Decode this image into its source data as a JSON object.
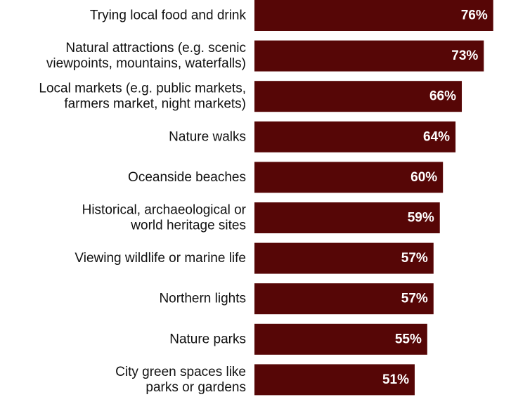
{
  "chart_data": {
    "type": "bar",
    "orientation": "horizontal",
    "title": "",
    "xlabel": "",
    "ylabel": "",
    "value_suffix": "%",
    "xlim": [
      0,
      100
    ],
    "grid": false,
    "legend": "none",
    "bar_color": "#560606",
    "categories": [
      [
        "Trying local food and drink"
      ],
      [
        "Natural attractions (e.g. scenic",
        "viewpoints, mountains, waterfalls)"
      ],
      [
        "Local markets (e.g. public markets,",
        "farmers market, night markets)"
      ],
      [
        "Nature walks"
      ],
      [
        "Oceanside beaches"
      ],
      [
        "Historical, archaeological or",
        "world heritage sites"
      ],
      [
        "Viewing wildlife or marine life"
      ],
      [
        "Northern lights"
      ],
      [
        "Nature parks"
      ],
      [
        "City green spaces like",
        "parks or gardens"
      ]
    ],
    "values": [
      76,
      73,
      66,
      64,
      60,
      59,
      57,
      57,
      55,
      51
    ],
    "data_labels": [
      "76%",
      "73%",
      "66%",
      "64%",
      "60%",
      "59%",
      "57%",
      "57%",
      "55%",
      "51%"
    ]
  }
}
